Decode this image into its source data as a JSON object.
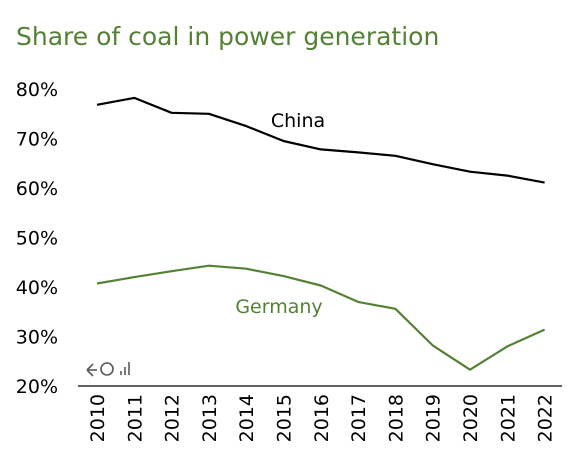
{
  "chart_data": {
    "type": "line",
    "title": "Share of coal in power generation",
    "xlabel": "",
    "ylabel": "",
    "x": [
      "2010",
      "2011",
      "2012",
      "2013",
      "2014",
      "2015",
      "2016",
      "2017",
      "2018",
      "2019",
      "2020",
      "2021",
      "2022"
    ],
    "y_ticks": [
      "80%",
      "70%",
      "60%",
      "50%",
      "40%",
      "30%",
      "20%"
    ],
    "ylim": [
      20,
      80
    ],
    "y_unit": "%",
    "grid": false,
    "legend": "none (series labeled directly on lines)",
    "series": [
      {
        "name": "China",
        "color": "#000000",
        "values": [
          76.8,
          78.2,
          75.2,
          75.0,
          72.5,
          69.5,
          67.8,
          67.2,
          66.5,
          64.8,
          63.3,
          62.5,
          61.1
        ]
      },
      {
        "name": "Germany",
        "color": "#548235",
        "values": [
          40.7,
          42.0,
          43.2,
          44.3,
          43.7,
          42.2,
          40.3,
          37.0,
          35.6,
          28.2,
          23.3,
          28.0,
          31.4
        ]
      }
    ]
  },
  "colors": {
    "title": "#548235",
    "axis": "#000000",
    "logo": "#595959"
  },
  "logo_icon": "kso-logo-icon"
}
